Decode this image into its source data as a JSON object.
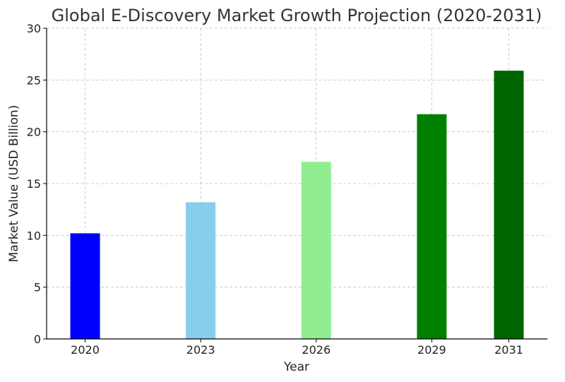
{
  "chart_data": {
    "type": "bar",
    "title": "Global E-Discovery Market Growth Projection (2020-2031)",
    "xlabel": "Year",
    "ylabel": "Market Value (USD Billion)",
    "categories": [
      "2020",
      "2023",
      "2026",
      "2029",
      "2031"
    ],
    "x": [
      2020,
      2023,
      2026,
      2029,
      2031
    ],
    "values": [
      10.2,
      13.2,
      17.1,
      21.7,
      25.9
    ],
    "colors": [
      "#0000ff",
      "#87ceeb",
      "#90ee90",
      "#008000",
      "#006400"
    ],
    "xlim": [
      2019.0,
      2032.0
    ],
    "ylim": [
      0,
      30
    ],
    "yticks": [
      0,
      5,
      10,
      15,
      20,
      25,
      30
    ],
    "grid": true,
    "legend": "none"
  }
}
